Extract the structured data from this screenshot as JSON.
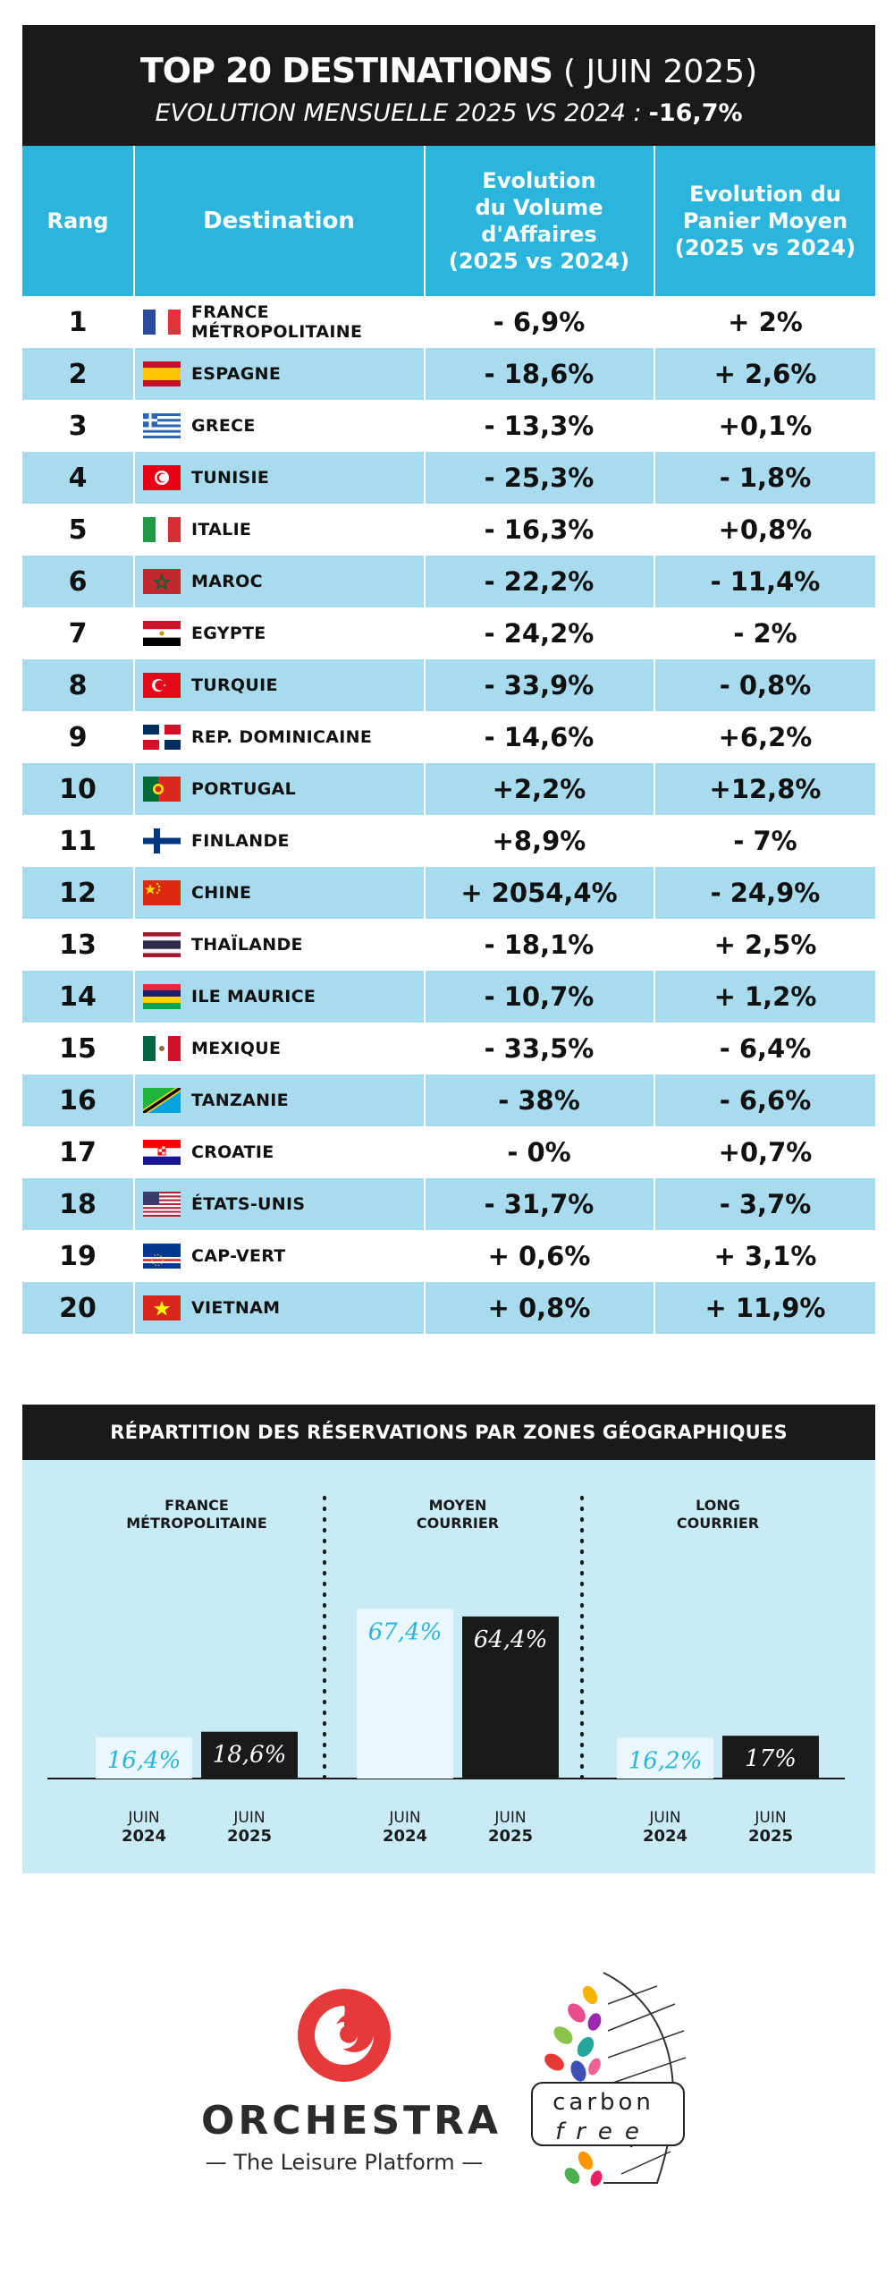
{
  "title": {
    "main": "TOP 20 DESTINATIONS",
    "period": "( JUIN 2025)",
    "subtitle": "EVOLUTION MENSUELLE 2025 VS 2024 :",
    "subtitle_value": "-16,7%"
  },
  "table": {
    "headers": {
      "rank": "Rang",
      "destination": "Destination",
      "volume": "Evolution\ndu Volume\nd'Affaires\n(2025 vs 2024)",
      "basket": "Evolution du\nPanier Moyen\n(2025 vs 2024)"
    },
    "rows": [
      {
        "rank": "1",
        "destination": "FRANCE MÉTROPOLITAINE",
        "flag": "france-flag",
        "volume": "- 6,9%",
        "basket": "+ 2%"
      },
      {
        "rank": "2",
        "destination": "ESPAGNE",
        "flag": "spain-flag",
        "volume": "- 18,6%",
        "basket": "+ 2,6%"
      },
      {
        "rank": "3",
        "destination": "GRECE",
        "flag": "greece-flag",
        "volume": "- 13,3%",
        "basket": "+0,1%"
      },
      {
        "rank": "4",
        "destination": "TUNISIE",
        "flag": "tunisia-flag",
        "volume": "- 25,3%",
        "basket": "- 1,8%"
      },
      {
        "rank": "5",
        "destination": "ITALIE",
        "flag": "italy-flag",
        "volume": "- 16,3%",
        "basket": "+0,8%"
      },
      {
        "rank": "6",
        "destination": "MAROC",
        "flag": "morocco-flag",
        "volume": "- 22,2%",
        "basket": "- 11,4%"
      },
      {
        "rank": "7",
        "destination": "EGYPTE",
        "flag": "egypt-flag",
        "volume": "- 24,2%",
        "basket": "- 2%"
      },
      {
        "rank": "8",
        "destination": "TURQUIE",
        "flag": "turkey-flag",
        "volume": "- 33,9%",
        "basket": "- 0,8%"
      },
      {
        "rank": "9",
        "destination": "REP. DOMINICAINE",
        "flag": "dominican-republic-flag",
        "volume": "- 14,6%",
        "basket": "+6,2%"
      },
      {
        "rank": "10",
        "destination": "PORTUGAL",
        "flag": "portugal-flag",
        "volume": "+2,2%",
        "basket": "+12,8%"
      },
      {
        "rank": "11",
        "destination": "FINLANDE",
        "flag": "finland-flag",
        "volume": "+8,9%",
        "basket": "- 7%"
      },
      {
        "rank": "12",
        "destination": "CHINE",
        "flag": "china-flag",
        "volume": "+ 2054,4%",
        "basket": "- 24,9%"
      },
      {
        "rank": "13",
        "destination": "THAÏLANDE",
        "flag": "thailand-flag",
        "volume": "- 18,1%",
        "basket": "+ 2,5%"
      },
      {
        "rank": "14",
        "destination": "ILE MAURICE",
        "flag": "mauritius-flag",
        "volume": "- 10,7%",
        "basket": "+ 1,2%"
      },
      {
        "rank": "15",
        "destination": "MEXIQUE",
        "flag": "mexico-flag",
        "volume": "- 33,5%",
        "basket": "- 6,4%"
      },
      {
        "rank": "16",
        "destination": "TANZANIE",
        "flag": "tanzania-flag",
        "volume": "- 38%",
        "basket": "- 6,6%"
      },
      {
        "rank": "17",
        "destination": "CROATIE",
        "flag": "croatia-flag",
        "volume": "- 0%",
        "basket": "+0,7%"
      },
      {
        "rank": "18",
        "destination": "ÉTATS-UNIS",
        "flag": "usa-flag",
        "volume": "- 31,7%",
        "basket": "- 3,7%"
      },
      {
        "rank": "19",
        "destination": "CAP-VERT",
        "flag": "cape-verde-flag",
        "volume": "+ 0,6%",
        "basket": "+ 3,1%"
      },
      {
        "rank": "20",
        "destination": "VIETNAM",
        "flag": "vietnam-flag",
        "volume": "+ 0,8%",
        "basket": "+ 11,9%"
      }
    ]
  },
  "chart_data": {
    "type": "bar",
    "title": "RÉPARTITION DES RÉSERVATIONS PAR ZONES GÉOGRAPHIQUES",
    "groups": [
      {
        "name": "FRANCE\nMÉTROPOLITAINE",
        "values": [
          16.4,
          18.6
        ],
        "labels": [
          "16,4%",
          "18,6%"
        ]
      },
      {
        "name": "MOYEN\nCOURRIER",
        "values": [
          67.4,
          64.4
        ],
        "labels": [
          "67,4%",
          "64,4%"
        ]
      },
      {
        "name": "LONG\nCOURRIER",
        "values": [
          16.2,
          17
        ],
        "labels": [
          "16,2%",
          "17%"
        ]
      }
    ],
    "categories": [
      {
        "month": "JUIN",
        "year": "2024"
      },
      {
        "month": "JUIN",
        "year": "2025"
      }
    ],
    "series_colors": [
      "#eaf7fc",
      "#1a1a1a"
    ],
    "label_colors": [
      "#2bb5dc",
      "#ffffff"
    ],
    "ylim": [
      0,
      80
    ]
  },
  "logos": {
    "orchestra_name": "ORCHESTRA",
    "orchestra_tagline": "— The Leisure Platform —",
    "carbon_top": "carbon",
    "carbon_bottom": "free",
    "orchestra_color": "#e63a3a"
  }
}
